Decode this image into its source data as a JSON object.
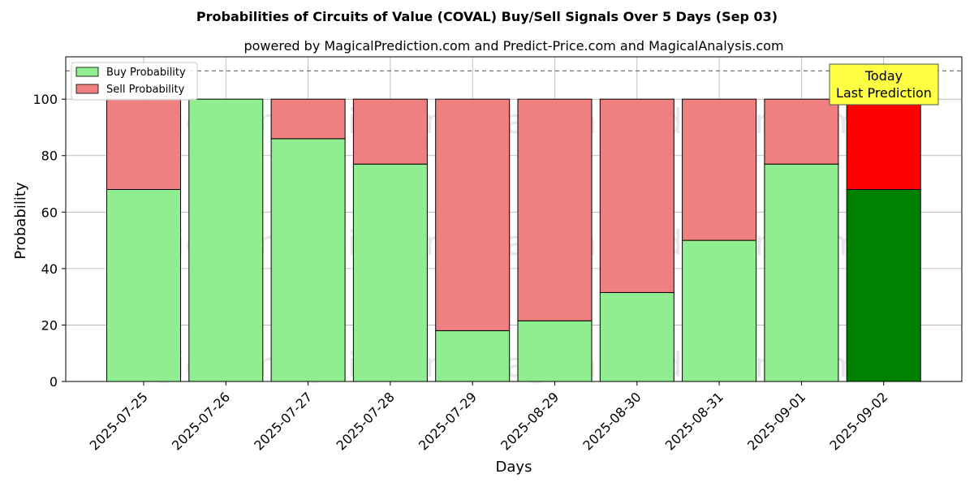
{
  "chart_data": {
    "type": "bar",
    "stacked": true,
    "title": "Probabilities of Circuits of Value (COVAL) Buy/Sell Signals Over 5 Days (Sep 03)",
    "subtitle": "powered by MagicalPrediction.com and Predict-Price.com and MagicalAnalysis.com",
    "xlabel": "Days",
    "ylabel": "Probability",
    "ylim": [
      0,
      115
    ],
    "yticks": [
      0,
      20,
      40,
      60,
      80,
      100
    ],
    "reference_line": 110,
    "grid": true,
    "legend_position": "top-left",
    "categories": [
      "2025-07-25",
      "2025-07-26",
      "2025-07-27",
      "2025-07-28",
      "2025-07-29",
      "2025-08-29",
      "2025-08-30",
      "2025-08-31",
      "2025-09-01",
      "2025-09-02"
    ],
    "series": [
      {
        "name": "Buy Probability",
        "values": [
          68,
          100,
          86,
          77,
          18,
          21.5,
          31.5,
          50,
          77,
          68
        ],
        "color": "#90ee90",
        "last_color": "#008000"
      },
      {
        "name": "Sell Probability",
        "values": [
          32,
          0,
          14,
          23,
          82,
          78.5,
          68.5,
          50,
          23,
          32
        ],
        "color": "#f08080",
        "last_color": "#ff0000"
      }
    ],
    "annotation": {
      "lines": [
        "Today",
        "Last Prediction"
      ],
      "color": "#ffff44"
    },
    "watermarks": [
      "MagicalAnalysis.com",
      "MagicalPrediction.com"
    ]
  }
}
